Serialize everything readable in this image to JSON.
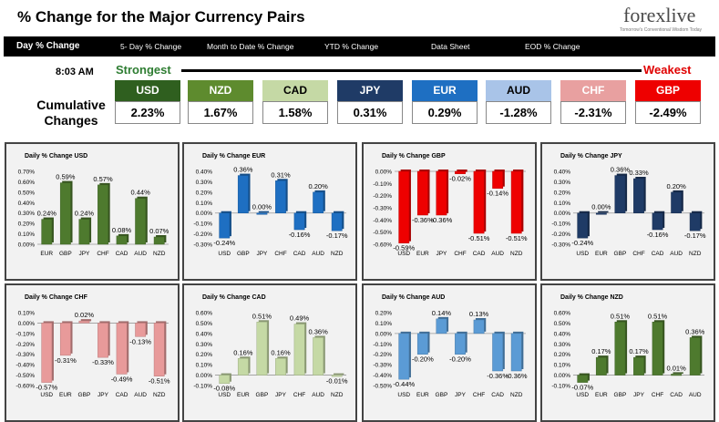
{
  "header": {
    "title": "% Change for the Major Currency Pairs",
    "logo": "forexlive",
    "logo_tagline": "Tomorrow's Conventional Wisdom Today"
  },
  "nav": {
    "items": [
      {
        "label": "Day % Change",
        "active": true
      },
      {
        "label": "5- Day % Change"
      },
      {
        "label": "Month to Date % Change"
      },
      {
        "label": "YTD % Change"
      },
      {
        "label": "Data Sheet"
      },
      {
        "label": "EOD % Change"
      }
    ]
  },
  "ranking": {
    "time": "8:03 AM",
    "strongest": "Strongest",
    "weakest": "Weakest",
    "label_line1": "Cumulative",
    "label_line2": "Changes",
    "currencies": [
      {
        "name": "USD",
        "value": "2.23%",
        "color": "#2f5f1f"
      },
      {
        "name": "NZD",
        "value": "1.67%",
        "color": "#5e8b2e"
      },
      {
        "name": "CAD",
        "value": "1.58%",
        "color": "#c5d9a5",
        "text_color": "#000000"
      },
      {
        "name": "JPY",
        "value": "0.31%",
        "color": "#1f3b66"
      },
      {
        "name": "EUR",
        "value": "0.29%",
        "color": "#1e6fc2"
      },
      {
        "name": "AUD",
        "value": "-1.28%",
        "color": "#a9c4e8",
        "text_color": "#000000"
      },
      {
        "name": "CHF",
        "value": "-2.31%",
        "color": "#e8a0a0"
      },
      {
        "name": "GBP",
        "value": "-2.49%",
        "color": "#ee0000"
      }
    ]
  },
  "chart_data": [
    {
      "type": "bar",
      "title": "Daily % Change USD",
      "categories": [
        "EUR",
        "GBP",
        "JPY",
        "CHF",
        "CAD",
        "AUD",
        "NZD"
      ],
      "values": [
        0.24,
        0.59,
        0.24,
        0.57,
        0.08,
        0.44,
        0.07
      ],
      "labels": [
        "0.24%",
        "0.59%",
        "0.24%",
        "0.57%",
        "0.08%",
        "0.44%",
        "0.07%"
      ],
      "ylim": [
        0,
        0.7
      ],
      "yticks": [
        "0.00%",
        "0.10%",
        "0.20%",
        "0.30%",
        "0.40%",
        "0.50%",
        "0.60%",
        "0.70%"
      ],
      "color": "#4e7a2e"
    },
    {
      "type": "bar",
      "title": "Daily % Change EUR",
      "categories": [
        "USD",
        "GBP",
        "JPY",
        "CHF",
        "CAD",
        "AUD",
        "NZD"
      ],
      "values": [
        -0.24,
        0.36,
        0.0,
        0.31,
        -0.16,
        0.2,
        -0.17
      ],
      "labels": [
        "-0.24%",
        "0.36%",
        "0.00%",
        "0.31%",
        "-0.16%",
        "0.20%",
        "-0.17%"
      ],
      "ylim": [
        -0.3,
        0.4
      ],
      "yticks": [
        "-0.30%",
        "-0.20%",
        "-0.10%",
        "0.00%",
        "0.10%",
        "0.20%",
        "0.30%",
        "0.40%"
      ],
      "color": "#1e6fc2"
    },
    {
      "type": "bar",
      "title": "Daily % Change GBP",
      "categories": [
        "USD",
        "EUR",
        "JPY",
        "CHF",
        "CAD",
        "AUD",
        "NZD"
      ],
      "values": [
        -0.59,
        -0.36,
        -0.36,
        -0.02,
        -0.51,
        -0.14,
        -0.51
      ],
      "labels": [
        "-0.59%",
        "-0.36%",
        "-0.36%",
        "-0.02%",
        "-0.51%",
        "-0.14%",
        "-0.51%"
      ],
      "ylim": [
        -0.6,
        0.0
      ],
      "yticks": [
        "-0.60%",
        "-0.50%",
        "-0.40%",
        "-0.30%",
        "-0.20%",
        "-0.10%",
        "0.00%"
      ],
      "color": "#ee0000"
    },
    {
      "type": "bar",
      "title": "Daily % Change JPY",
      "categories": [
        "USD",
        "EUR",
        "GBP",
        "CHF",
        "CAD",
        "AUD",
        "NZD"
      ],
      "values": [
        -0.24,
        0.0,
        0.36,
        0.33,
        -0.16,
        0.2,
        -0.17
      ],
      "labels": [
        "-0.24%",
        "0.00%",
        "0.36%",
        "0.33%",
        "-0.16%",
        "0.20%",
        "-0.17%"
      ],
      "ylim": [
        -0.3,
        0.4
      ],
      "yticks": [
        "-0.30%",
        "-0.20%",
        "-0.10%",
        "0.00%",
        "0.10%",
        "0.20%",
        "0.30%",
        "0.40%"
      ],
      "color": "#1f3b66"
    },
    {
      "type": "bar",
      "title": "Daily % Change CHF",
      "categories": [
        "USD",
        "EUR",
        "GBP",
        "JPY",
        "CAD",
        "AUD",
        "NZD"
      ],
      "values": [
        -0.57,
        -0.31,
        0.02,
        -0.33,
        -0.49,
        -0.13,
        -0.51
      ],
      "labels": [
        "-0.57%",
        "-0.31%",
        "0.02%",
        "-0.33%",
        "-0.49%",
        "-0.13%",
        "-0.51%"
      ],
      "ylim": [
        -0.6,
        0.1
      ],
      "yticks": [
        "-0.60%",
        "-0.50%",
        "-0.40%",
        "-0.30%",
        "-0.20%",
        "-0.10%",
        "0.00%",
        "0.10%"
      ],
      "color": "#e89a9a"
    },
    {
      "type": "bar",
      "title": "Daily % Change CAD",
      "categories": [
        "USD",
        "EUR",
        "GBP",
        "JPY",
        "CHF",
        "AUD",
        "NZD"
      ],
      "values": [
        -0.08,
        0.16,
        0.51,
        0.16,
        0.49,
        0.36,
        -0.01
      ],
      "labels": [
        "-0.08%",
        "0.16%",
        "0.51%",
        "0.16%",
        "0.49%",
        "0.36%",
        "-0.01%"
      ],
      "ylim": [
        -0.1,
        0.6
      ],
      "yticks": [
        "-0.10%",
        "0.00%",
        "0.10%",
        "0.20%",
        "0.30%",
        "0.40%",
        "0.50%",
        "0.60%"
      ],
      "color": "#c5d9a5"
    },
    {
      "type": "bar",
      "title": "Daily % Change AUD",
      "categories": [
        "USD",
        "EUR",
        "GBP",
        "JPY",
        "CHF",
        "CAD",
        "NZD"
      ],
      "values": [
        -0.44,
        -0.2,
        0.14,
        -0.2,
        0.13,
        -0.36,
        -0.36
      ],
      "labels": [
        "-0.44%",
        "-0.20%",
        "0.14%",
        "-0.20%",
        "0.13%",
        "-0.36%",
        "-0.36%"
      ],
      "ylim": [
        -0.5,
        0.2
      ],
      "yticks": [
        "-0.50%",
        "-0.40%",
        "-0.30%",
        "-0.20%",
        "-0.10%",
        "0.00%",
        "0.10%",
        "0.20%"
      ],
      "color": "#5b9bd5"
    },
    {
      "type": "bar",
      "title": "Daily % Change NZD",
      "categories": [
        "USD",
        "EUR",
        "GBP",
        "JPY",
        "CHF",
        "CAD",
        "AUD"
      ],
      "values": [
        -0.07,
        0.17,
        0.51,
        0.17,
        0.51,
        0.01,
        0.36
      ],
      "labels": [
        "-0.07%",
        "0.17%",
        "0.51%",
        "0.17%",
        "0.51%",
        "0.01%",
        "0.36%"
      ],
      "ylim": [
        -0.1,
        0.6
      ],
      "yticks": [
        "-0.10%",
        "0.00%",
        "0.10%",
        "0.20%",
        "0.30%",
        "0.40%",
        "0.50%",
        "0.60%"
      ],
      "color": "#4e7a2e"
    }
  ]
}
